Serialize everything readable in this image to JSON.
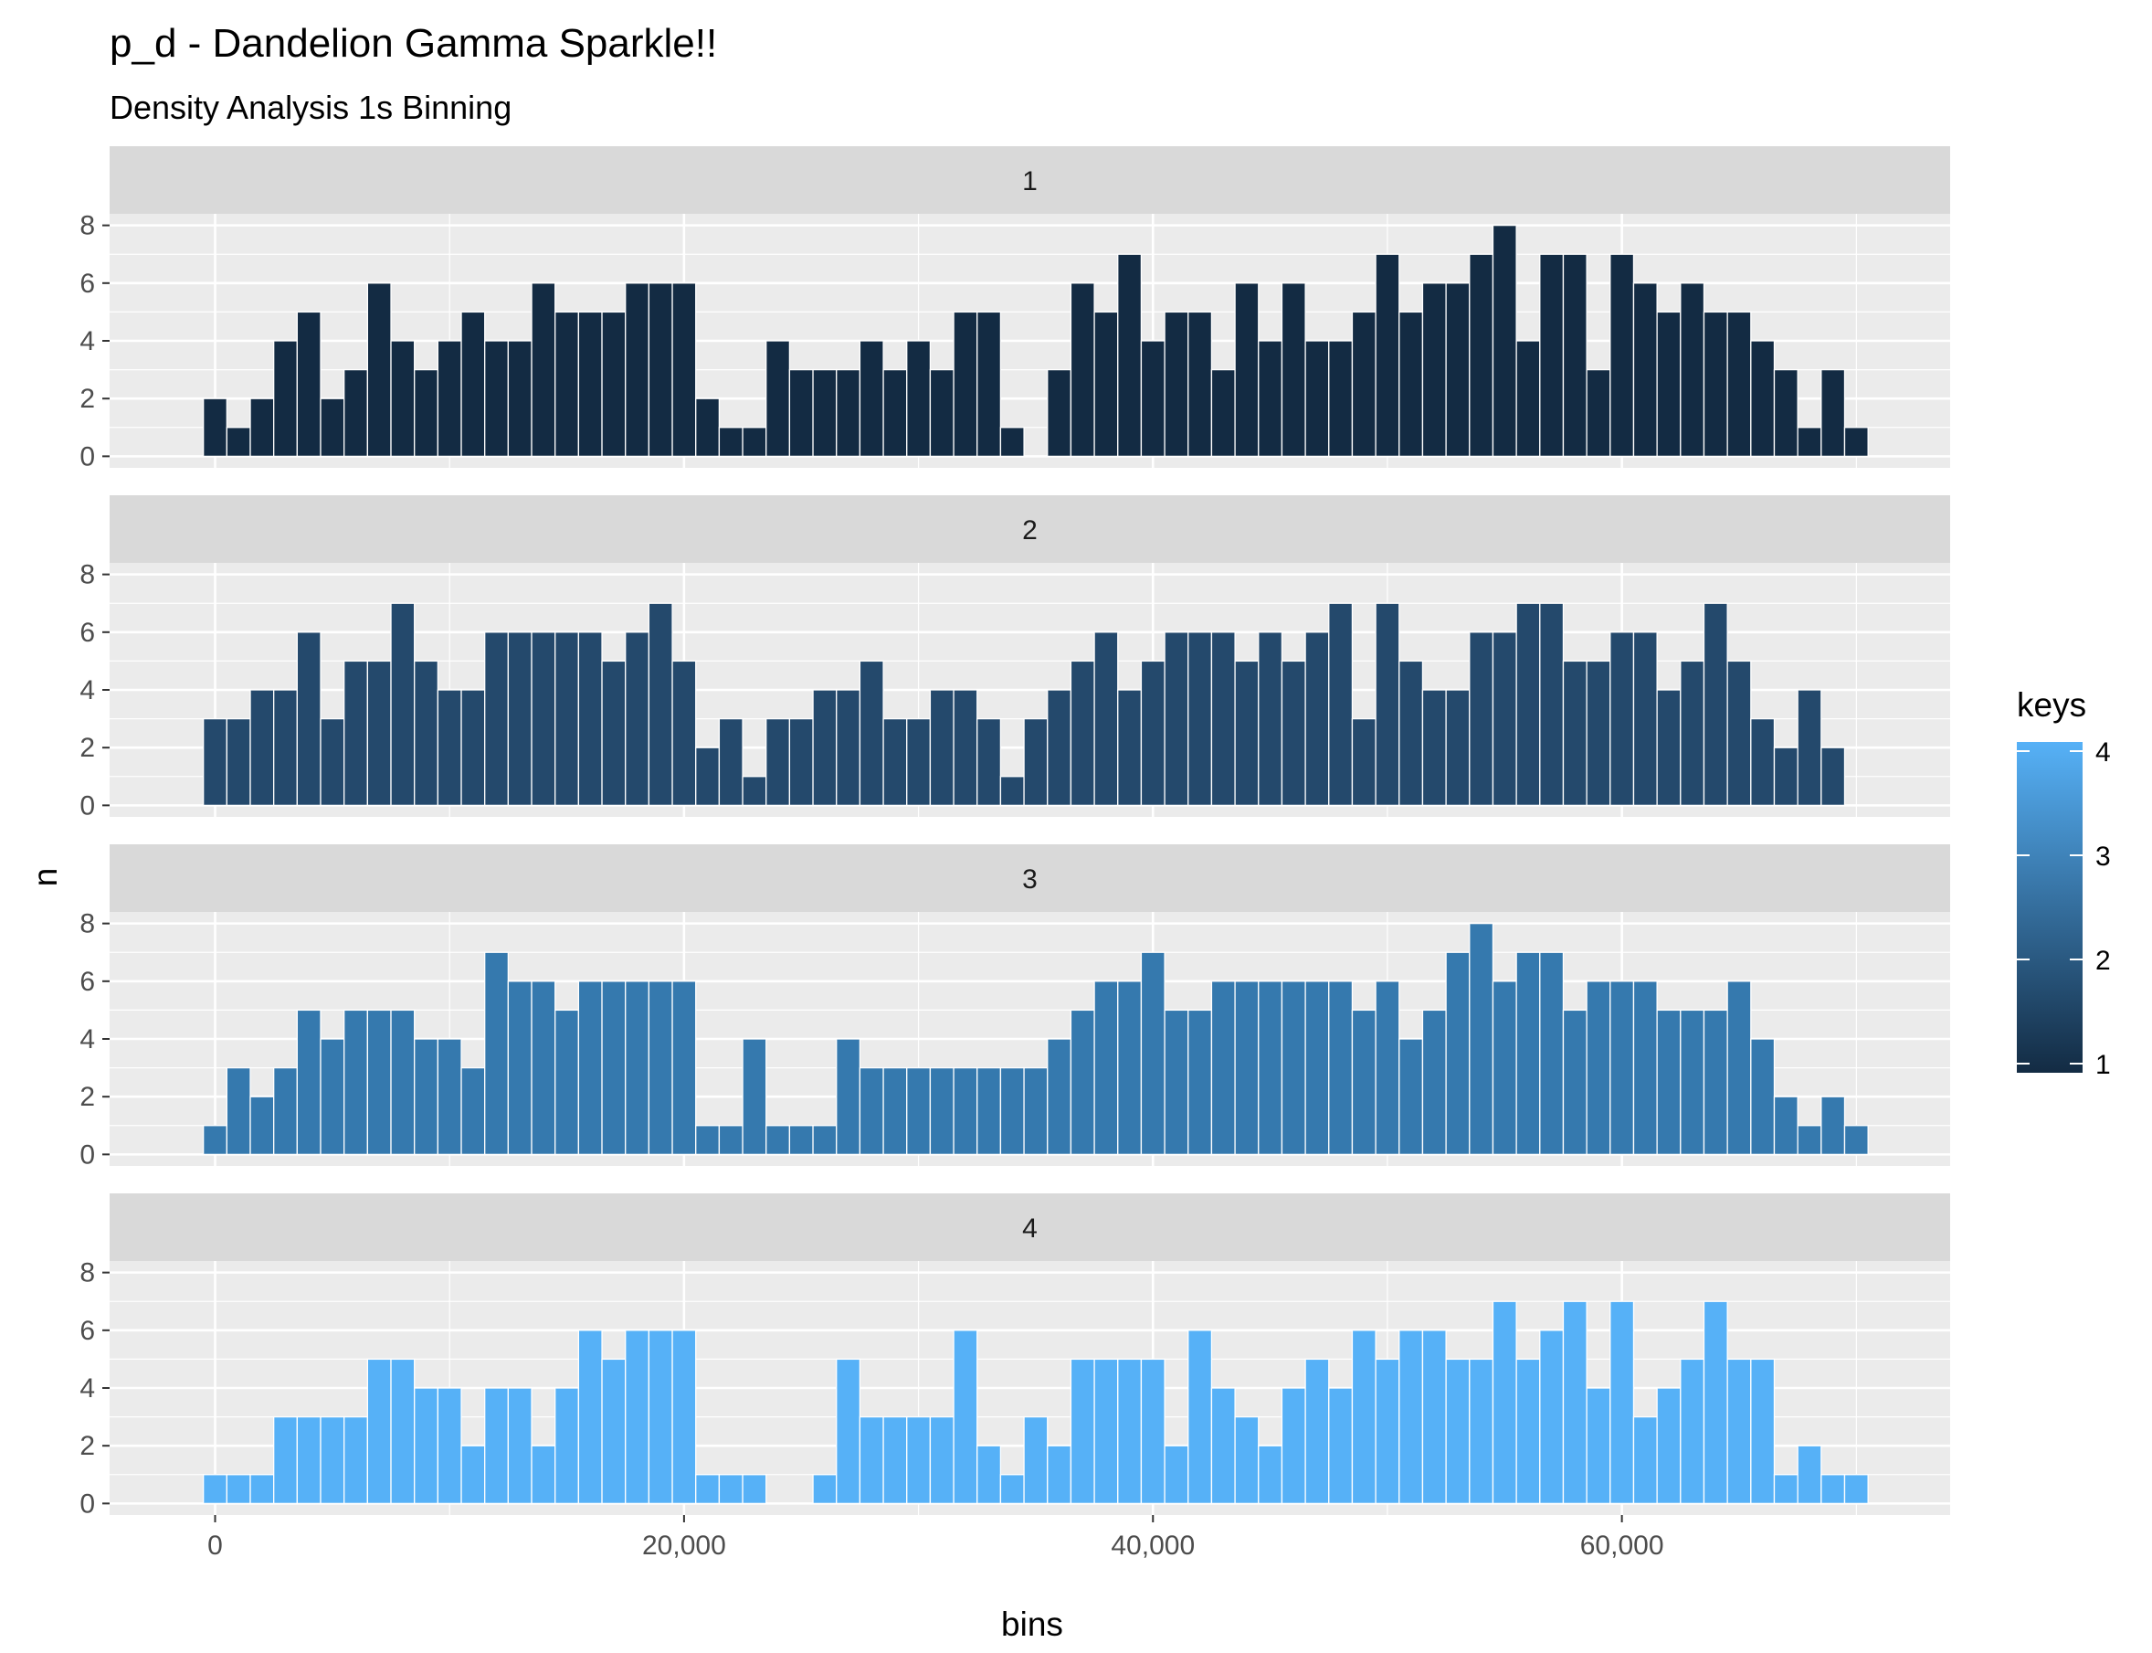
{
  "chart_data": {
    "type": "bar",
    "title": "p_d - Dandelion Gamma Sparkle!!",
    "subtitle": "Density Analysis 1s Binning",
    "xlabel": "bins",
    "ylabel": "n",
    "xlim": [
      -4500,
      74000
    ],
    "ylim": [
      -0.4,
      8.4
    ],
    "x_ticks": [
      0,
      20000,
      40000,
      60000
    ],
    "x_tick_labels": [
      "0",
      "20,000",
      "40,000",
      "60,000"
    ],
    "y_ticks": [
      0,
      2,
      4,
      6,
      8
    ],
    "y_tick_labels": [
      "0",
      "2",
      "4",
      "6",
      "8"
    ],
    "x_start": 0,
    "bin_width": 1000,
    "grid": true,
    "legend": {
      "title": "keys",
      "position": "right",
      "labels": [
        "1",
        "2",
        "3",
        "4"
      ],
      "color_low": "#132B43",
      "color_high": "#56B1F7"
    },
    "facets": [
      {
        "name": "1",
        "color": "#132B43",
        "values": [
          2,
          1,
          2,
          4,
          5,
          2,
          3,
          6,
          4,
          3,
          4,
          5,
          4,
          4,
          6,
          5,
          5,
          5,
          6,
          6,
          6,
          2,
          1,
          1,
          4,
          3,
          3,
          3,
          4,
          3,
          4,
          3,
          5,
          5,
          1,
          0,
          3,
          6,
          5,
          7,
          4,
          5,
          5,
          3,
          6,
          4,
          6,
          4,
          4,
          5,
          7,
          5,
          6,
          6,
          7,
          8,
          4,
          7,
          7,
          3,
          7,
          6,
          5,
          6,
          5,
          5,
          4,
          3,
          1,
          3,
          1
        ]
      },
      {
        "name": "2",
        "color": "#24496C",
        "values": [
          3,
          3,
          4,
          4,
          6,
          3,
          5,
          5,
          7,
          5,
          4,
          4,
          6,
          6,
          6,
          6,
          6,
          5,
          6,
          7,
          5,
          2,
          3,
          1,
          3,
          3,
          4,
          4,
          5,
          3,
          3,
          4,
          4,
          3,
          1,
          3,
          4,
          5,
          6,
          4,
          5,
          6,
          6,
          6,
          5,
          6,
          5,
          6,
          7,
          3,
          7,
          5,
          4,
          4,
          6,
          6,
          7,
          7,
          5,
          5,
          6,
          6,
          4,
          5,
          7,
          5,
          3,
          2,
          4,
          2
        ]
      },
      {
        "name": "3",
        "color": "#3579AE",
        "values": [
          1,
          3,
          2,
          3,
          5,
          4,
          5,
          5,
          5,
          4,
          4,
          3,
          7,
          6,
          6,
          5,
          6,
          6,
          6,
          6,
          6,
          1,
          1,
          4,
          1,
          1,
          1,
          4,
          3,
          3,
          3,
          3,
          3,
          3,
          3,
          3,
          4,
          5,
          6,
          6,
          7,
          5,
          5,
          6,
          6,
          6,
          6,
          6,
          6,
          5,
          6,
          4,
          5,
          7,
          8,
          6,
          7,
          7,
          5,
          6,
          6,
          6,
          5,
          5,
          5,
          6,
          4,
          2,
          1,
          2,
          1
        ]
      },
      {
        "name": "4",
        "color": "#56B1F7",
        "values": [
          1,
          1,
          1,
          3,
          3,
          3,
          3,
          5,
          5,
          4,
          4,
          2,
          4,
          4,
          2,
          4,
          6,
          5,
          6,
          6,
          6,
          1,
          1,
          1,
          0,
          0,
          1,
          5,
          3,
          3,
          3,
          3,
          6,
          2,
          1,
          3,
          2,
          5,
          5,
          5,
          5,
          2,
          6,
          4,
          3,
          2,
          4,
          5,
          4,
          6,
          5,
          6,
          6,
          5,
          5,
          7,
          5,
          6,
          7,
          4,
          7,
          3,
          4,
          5,
          7,
          5,
          5,
          1,
          2,
          1,
          1
        ]
      }
    ]
  }
}
